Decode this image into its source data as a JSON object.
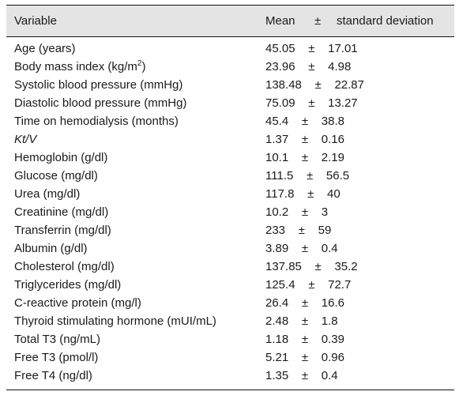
{
  "table": {
    "headers": {
      "variable": "Variable",
      "mean": "Mean",
      "pm": "±",
      "sd": "standard deviation"
    },
    "rows": [
      {
        "variable": "Age (years)",
        "value": "45.05    ±    17.01"
      },
      {
        "variable_pre": "Body mass index (kg/m",
        "variable_sup": "2",
        "variable_post": ")",
        "value": "23.96    ±    4.98"
      },
      {
        "variable": "Systolic blood pressure (mmHg)",
        "value": "138.48    ±    22.87"
      },
      {
        "variable": "Diastolic blood pressure (mmHg)",
        "value": "75.09    ±    13.27"
      },
      {
        "variable": "Time on hemodialysis (months)",
        "value": "45.4    ±    38.8"
      },
      {
        "variable": "Kt/V",
        "value": "1.37    ±    0.16",
        "italic": true
      },
      {
        "variable": "Hemoglobin (g/dl)",
        "value": "10.1    ±    2.19"
      },
      {
        "variable": "Glucose (mg/dl)",
        "value": "111.5    ±    56.5"
      },
      {
        "variable": "Urea (mg/dl)",
        "value": "117.8    ±    40"
      },
      {
        "variable": "Creatinine (mg/dl)",
        "value": "10.2    ±    3"
      },
      {
        "variable": "Transferrin (mg/dl)",
        "value": "233    ±    59"
      },
      {
        "variable": "Albumin (g/dl)",
        "value": "3.89    ±    0.4"
      },
      {
        "variable": "Cholesterol (mg/dl)",
        "value": "137.85    ±    35.2"
      },
      {
        "variable": "Triglycerides (mg/dl)",
        "value": "125.4    ±    72.7"
      },
      {
        "variable": "C-reactive protein (mg/l)",
        "value": "26.4    ±    16.6"
      },
      {
        "variable": "Thyroid stimulating hormone (mUI/mL)",
        "value": "2.48    ±    1.8"
      },
      {
        "variable": "Total T3 (ng/mL)",
        "value": "1.18    ±    0.39"
      },
      {
        "variable": "Free T3 (pmol/l)",
        "value": "5.21    ±    0.96"
      },
      {
        "variable": "Free T4 (ng/dl)",
        "value": "1.35    ±    0.4"
      }
    ]
  }
}
